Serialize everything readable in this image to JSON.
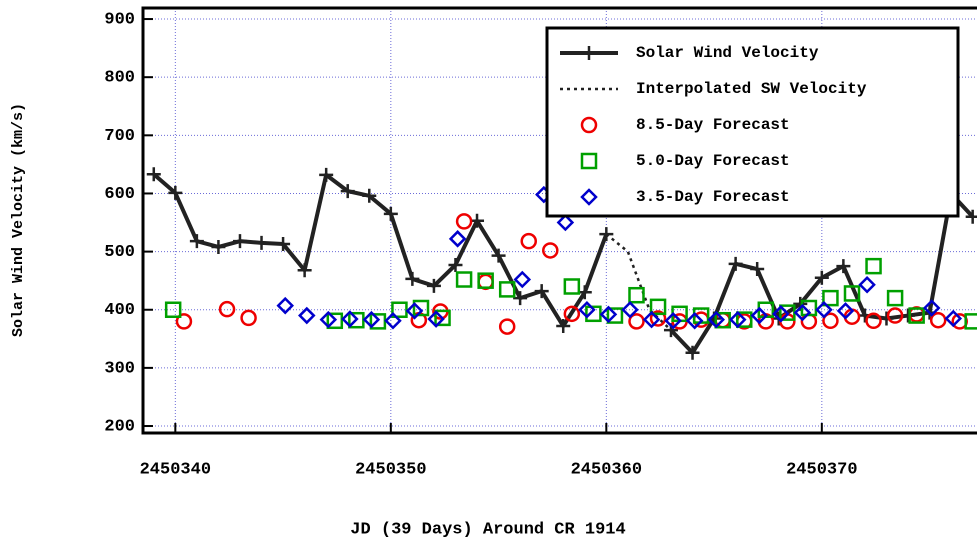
{
  "chart_data": {
    "type": "line",
    "xlabel": "JD (39 Days) Around CR 1914",
    "ylabel": "Solar Wind Velocity (km/s)",
    "xlim": [
      2450338.5,
      2450377.2
    ],
    "ylim": [
      188,
      919
    ],
    "xticks": [
      2450340,
      2450350,
      2450360,
      2450370
    ],
    "yticks": [
      200,
      300,
      400,
      500,
      600,
      700,
      800,
      900
    ],
    "grid": true,
    "legend": "upper right",
    "series": [
      {
        "name": "Solar Wind Velocity",
        "color": "#222222",
        "style": "solid",
        "marker": "plus",
        "x": [
          2450339,
          2450340,
          2450341,
          2450342,
          2450343,
          2450344,
          2450345,
          2450346,
          2450347,
          2450348,
          2450349,
          2450350,
          2450351,
          2450352,
          2450353,
          2450354,
          2450355,
          2450356,
          2450357,
          2450358,
          2450359,
          2450360,
          2450361,
          2450362,
          2450363,
          2450364,
          2450365,
          2450366,
          2450367,
          2450368,
          2450369,
          2450370,
          2450371,
          2450372,
          2450373,
          2450374,
          2450375,
          2450376,
          2450377
        ],
        "values": [
          633,
          601,
          518,
          508,
          518,
          515,
          513,
          468,
          632,
          604,
          596,
          565,
          453,
          441,
          477,
          553,
          493,
          420,
          432,
          372,
          430,
          530,
          null,
          null,
          365,
          326,
          385,
          479,
          470,
          385,
          410,
          455,
          475,
          390,
          385,
          390,
          395,
          600,
          560
        ]
      },
      {
        "name": "Interpolated SW Velocity",
        "color": "#222222",
        "style": "dotted",
        "marker": "none",
        "x": [
          2450360,
          2450361,
          2450362,
          2450363
        ],
        "values": [
          530,
          500,
          400,
          365
        ]
      },
      {
        "name": "8.5-Day Forecast",
        "color": "#ee0000",
        "marker": "circle",
        "x": [
          2450340.4,
          2450342.4,
          2450343.4,
          2450351.3,
          2450352.3,
          2450353.4,
          2450354.4,
          2450355.4,
          2450356.4,
          2450357.4,
          2450358.4,
          2450361.4,
          2450362.4,
          2450363.4,
          2450364.4,
          2450365.4,
          2450366.4,
          2450367.4,
          2450368.4,
          2450369.4,
          2450370.4,
          2450371.4,
          2450372.4,
          2450373.4,
          2450374.4,
          2450375.4,
          2450376.4
        ],
        "values": [
          380,
          401,
          386,
          382,
          397,
          552,
          448,
          371,
          518,
          502,
          393,
          380,
          385,
          380,
          383,
          382,
          380,
          380,
          380,
          380,
          381,
          388,
          381,
          390,
          392,
          382,
          380
        ]
      },
      {
        "name": "5.0-Day Forecast",
        "color": "#00a000",
        "marker": "square",
        "x": [
          2450339.9,
          2450347.4,
          2450348.4,
          2450349.4,
          2450350.4,
          2450351.4,
          2450352.4,
          2450353.4,
          2450354.4,
          2450355.4,
          2450358.4,
          2450359.4,
          2450360.4,
          2450361.4,
          2450362.4,
          2450363.4,
          2450364.4,
          2450365.4,
          2450366.4,
          2450367.4,
          2450368.4,
          2450369.4,
          2450370.4,
          2450371.4,
          2450372.4,
          2450373.4,
          2450374.4,
          2450377.0
        ],
        "values": [
          400,
          381,
          382,
          380,
          400,
          403,
          386,
          452,
          450,
          435,
          440,
          393,
          390,
          425,
          405,
          393,
          390,
          382,
          383,
          400,
          395,
          403,
          420,
          428,
          475,
          420,
          390,
          380
        ]
      },
      {
        "name": "3.5-Day Forecast",
        "color": "#0000cc",
        "marker": "diamond",
        "x": [
          2450345.1,
          2450346.1,
          2450347.1,
          2450348.1,
          2450349.1,
          2450350.1,
          2450351.1,
          2450352.1,
          2450353.1,
          2450356.1,
          2450357.1,
          2450358.1,
          2450359.1,
          2450360.1,
          2450361.1,
          2450362.1,
          2450363.1,
          2450364.1,
          2450365.1,
          2450366.1,
          2450367.1,
          2450368.1,
          2450369.1,
          2450370.1,
          2450371.1,
          2450372.1,
          2450375.1,
          2450376.1
        ],
        "values": [
          407,
          390,
          383,
          384,
          383,
          381,
          398,
          384,
          522,
          452,
          598,
          550,
          400,
          392,
          400,
          383,
          381,
          381,
          383,
          383,
          390,
          393,
          395,
          400,
          398,
          443,
          403,
          385
        ]
      }
    ]
  }
}
